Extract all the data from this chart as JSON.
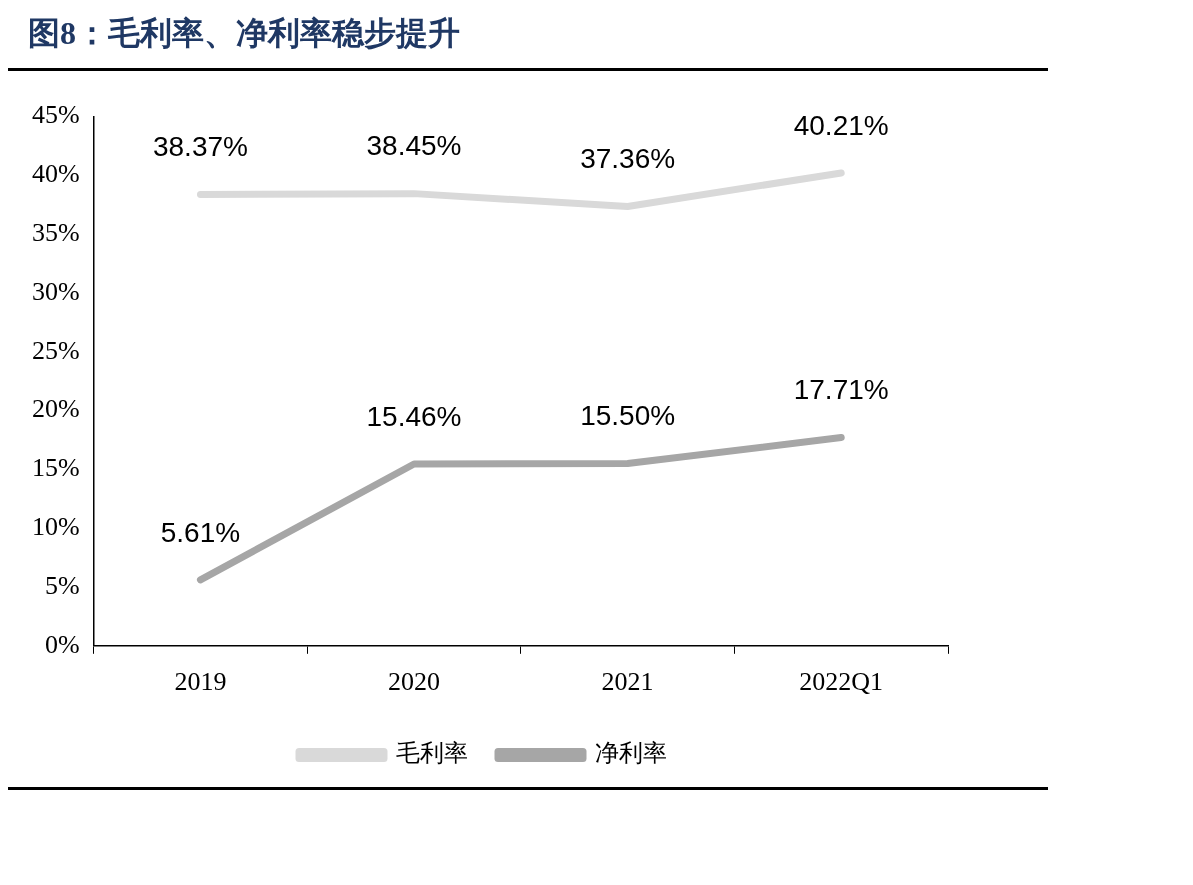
{
  "chart_data": {
    "type": "line",
    "title": "图8：毛利率、净利率稳步提升",
    "categories": [
      "2019",
      "2020",
      "2021",
      "2022Q1"
    ],
    "series": [
      {
        "name": "毛利率",
        "color": "#d9d9d9",
        "values": [
          38.37,
          38.45,
          37.36,
          40.21
        ],
        "value_labels": [
          "38.37%",
          "38.45%",
          "37.36%",
          "40.21%"
        ]
      },
      {
        "name": "净利率",
        "color": "#a6a6a6",
        "values": [
          5.61,
          15.46,
          15.5,
          17.71
        ],
        "value_labels": [
          "5.61%",
          "15.46%",
          "15.50%",
          "17.71%"
        ]
      }
    ],
    "ylim": [
      0,
      45
    ],
    "yticks": [
      {
        "value": 0,
        "label": "0%"
      },
      {
        "value": 5,
        "label": "5%"
      },
      {
        "value": 10,
        "label": "10%"
      },
      {
        "value": 15,
        "label": "15%"
      },
      {
        "value": 20,
        "label": "20%"
      },
      {
        "value": 25,
        "label": "25%"
      },
      {
        "value": 30,
        "label": "30%"
      },
      {
        "value": 35,
        "label": "35%"
      },
      {
        "value": 40,
        "label": "40%"
      },
      {
        "value": 45,
        "label": "45%"
      }
    ],
    "legend": "bottom",
    "marker": "none",
    "line_style": "solid"
  }
}
